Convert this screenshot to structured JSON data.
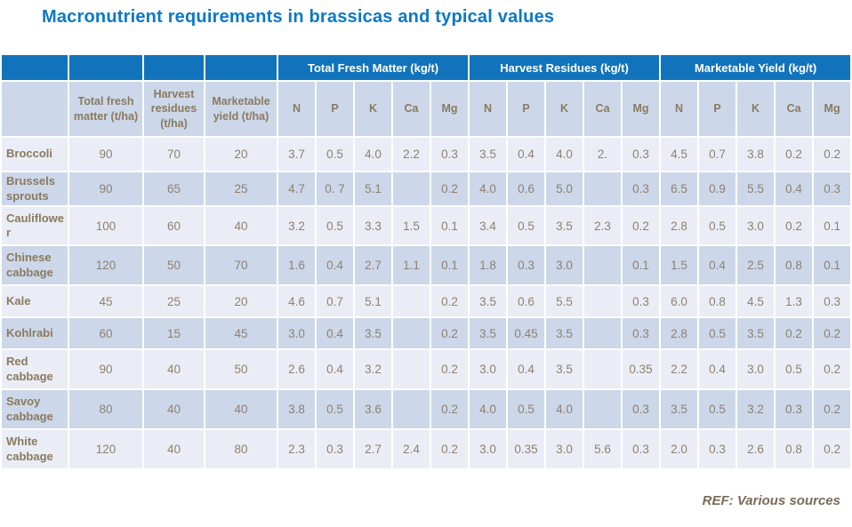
{
  "slide": {
    "title": "Macronutrient requirements in brassicas and typical values",
    "reference": "REF: Various sources"
  },
  "colors": {
    "header_blue": "#1173bc",
    "title_blue": "#0b78c8",
    "row_light": "#eaedf5",
    "row_dark": "#ccd7e9",
    "subheader_bg": "#ccd7e9",
    "text_brown": "#8e8172",
    "label_brown": "#8a7a5f",
    "reference_brown": "#7a6b57"
  },
  "table": {
    "group_headers": [
      {
        "label": "Total Fresh Matter (kg/t)"
      },
      {
        "label": "Harvest Residues (kg/t)"
      },
      {
        "label": "Marketable Yield (kg/t)"
      }
    ],
    "sub_headers": [
      "",
      "Total fresh matter (t/ha)",
      "Harvest residues (t/ha)",
      "Marketable yield (t/ha)",
      "N",
      "P",
      "K",
      "Ca",
      "Mg",
      "N",
      "P",
      "K",
      "Ca",
      "Mg",
      "N",
      "P",
      "K",
      "Ca",
      "Mg"
    ],
    "rows": [
      {
        "label": "Broccoli",
        "values": [
          "90",
          "70",
          "20",
          "3.7",
          "0.5",
          "4.0",
          "2.2",
          "0.3",
          "3.5",
          "0.4",
          "4.0",
          "2.",
          "0.3",
          "4.5",
          "0.7",
          "3.8",
          "0.2",
          "0.2"
        ]
      },
      {
        "label": "Brussels sprouts",
        "values": [
          "90",
          "65",
          "25",
          "4.7",
          "0. 7",
          "5.1",
          "",
          "0.2",
          "4.0",
          "0.6",
          "5.0",
          "",
          "0.3",
          "6.5",
          "0.9",
          "5.5",
          "0.4",
          "0.3"
        ]
      },
      {
        "label": "Cauliflower",
        "values": [
          "100",
          "60",
          "40",
          "3.2",
          "0.5",
          "3.3",
          "1.5",
          "0.1",
          "3.4",
          "0.5",
          "3.5",
          "2.3",
          "0.2",
          "2.8",
          "0.5",
          "3.0",
          "0.2",
          "0.1"
        ]
      },
      {
        "label": "Chinese cabbage",
        "values": [
          "120",
          "50",
          "70",
          "1.6",
          "0.4",
          "2.7",
          "1.1",
          "0.1",
          "1.8",
          "0.3",
          "3.0",
          "",
          "0.1",
          "1.5",
          "0.4",
          "2.5",
          "0.8",
          "0.1"
        ]
      },
      {
        "label": "Kale",
        "values": [
          "45",
          "25",
          "20",
          "4.6",
          "0.7",
          "5.1",
          "",
          "0.2",
          "3.5",
          "0.6",
          "5.5",
          "",
          "0.3",
          "6.0",
          "0.8",
          "4.5",
          "1.3",
          "0.3"
        ]
      },
      {
        "label": "Kohlrabi",
        "values": [
          "60",
          "15",
          "45",
          "3.0",
          "0.4",
          "3.5",
          "",
          "0.2",
          "3.5",
          "0.45",
          "3.5",
          "",
          "0.3",
          "2.8",
          "0.5",
          "3.5",
          "0.2",
          "0.2"
        ]
      },
      {
        "label": "Red cabbage",
        "values": [
          "90",
          "40",
          "50",
          "2.6",
          "0.4",
          "3.2",
          "",
          "0.2",
          "3.0",
          "0.4",
          "3.5",
          "",
          "0.35",
          "2.2",
          "0.4",
          "3.0",
          "0.5",
          "0.2"
        ]
      },
      {
        "label": "Savoy cabbage",
        "values": [
          "80",
          "40",
          "40",
          "3.8",
          "0.5",
          "3.6",
          "",
          "0.2",
          "4.0",
          "0.5",
          "4.0",
          "",
          "0.3",
          "3.5",
          "0.5",
          "3.2",
          "0.3",
          "0.2"
        ]
      },
      {
        "label": "White cabbage",
        "values": [
          "120",
          "40",
          "80",
          "2.3",
          "0.3",
          "2.7",
          "2.4",
          "0.2",
          "3.0",
          "0.35",
          "3.0",
          "5.6",
          "0.3",
          "2.0",
          "0.3",
          "2.6",
          "0.8",
          "0.2"
        ]
      }
    ]
  }
}
